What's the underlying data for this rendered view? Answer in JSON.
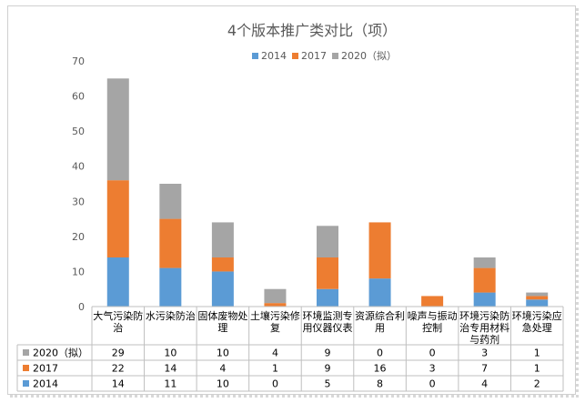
{
  "chart_data": {
    "type": "bar",
    "stacked": true,
    "title": "4个版本推广类对比（项）",
    "categories": [
      [
        "大气污染防",
        "治"
      ],
      [
        "水污染防治"
      ],
      [
        "固体废物处",
        "理"
      ],
      [
        "土壤污染修",
        "复"
      ],
      [
        "环境监测专",
        "用仪器仪表"
      ],
      [
        "资源综合利",
        "用"
      ],
      [
        "噪声与振动",
        "控制"
      ],
      [
        "环境污染防",
        "治专用材料",
        "与药剂"
      ],
      [
        "环境污染应",
        "急处理"
      ]
    ],
    "series": [
      {
        "name": "2014",
        "color": "#5b9bd5",
        "values": [
          14,
          11,
          10,
          0,
          5,
          8,
          0,
          4,
          2
        ]
      },
      {
        "name": "2017",
        "color": "#ed7d31",
        "values": [
          22,
          14,
          4,
          1,
          9,
          16,
          3,
          7,
          1
        ]
      },
      {
        "name": "2020（拟）",
        "color": "#a5a5a5",
        "values": [
          29,
          10,
          10,
          4,
          9,
          0,
          0,
          3,
          1
        ]
      }
    ],
    "ylim": [
      0,
      70
    ],
    "yticks": [
      0,
      10,
      20,
      30,
      40,
      50,
      60,
      70
    ],
    "legend_position": "top",
    "data_table": true,
    "grid": false
  }
}
